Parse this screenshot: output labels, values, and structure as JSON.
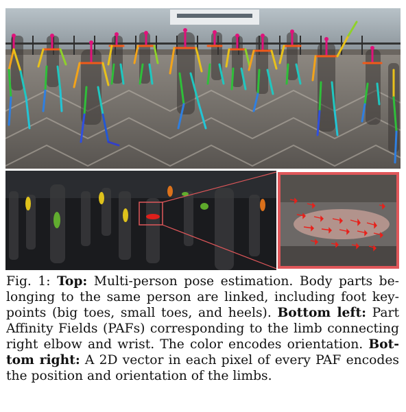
{
  "figure": {
    "caption": {
      "line1": {
        "label": "Fig. 1: ",
        "b1": "Top:",
        "t1": " Multi-person pose estimation. Body parts be-"
      },
      "line2": {
        "t1": "longing to the same person are linked, including foot key-"
      },
      "line3": {
        "t1": "points (big toes, small toes, and heels). ",
        "b1": "Bottom left:",
        "t2": " Part"
      },
      "line4": {
        "t1": "Affinity Fields (PAFs) corresponding to the limb connecting"
      },
      "line5": {
        "t1": "right elbow and wrist. The color encodes orientation. ",
        "b1": "Bot-"
      },
      "line6": {
        "b1": "tom right:",
        "t1": " A 2D vector in each pixel of every PAF encodes"
      },
      "line7": {
        "t1": "the position and orientation of the limbs."
      }
    },
    "colors": {
      "zoom_box": "#e0575a",
      "paf_arrows": "#e8201a",
      "paf_yellow": "#f2d21a",
      "paf_green": "#6ac22e",
      "paf_orange": "#f07a1a"
    }
  }
}
